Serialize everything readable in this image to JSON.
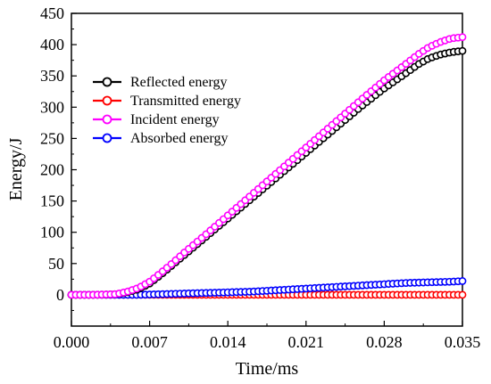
{
  "chart_data": {
    "type": "line",
    "xlabel": "Time/ms",
    "ylabel": "Energy/J",
    "xlim": [
      0,
      0.035
    ],
    "ylim": [
      -50,
      450
    ],
    "x_ticks": [
      "0.000",
      "0.007",
      "0.014",
      "0.021",
      "0.028",
      "0.035"
    ],
    "x_tick_values": [
      0,
      0.007,
      0.014,
      0.021,
      0.028,
      0.035
    ],
    "y_ticks": [
      "0",
      "50",
      "100",
      "150",
      "200",
      "250",
      "300",
      "350",
      "400",
      "450"
    ],
    "y_tick_values": [
      0,
      50,
      100,
      150,
      200,
      250,
      300,
      350,
      400,
      450
    ],
    "legend_position": "top-left",
    "grid": false,
    "marker": "hollow-circle",
    "series": [
      {
        "name": "Reflected energy",
        "color": "#000000",
        "points": [
          [
            0,
            0
          ],
          [
            0.002,
            0
          ],
          [
            0.004,
            1
          ],
          [
            0.005,
            4
          ],
          [
            0.006,
            9
          ],
          [
            0.007,
            18
          ],
          [
            0.008,
            32
          ],
          [
            0.009,
            47
          ],
          [
            0.01,
            62
          ],
          [
            0.012,
            92
          ],
          [
            0.014,
            122
          ],
          [
            0.016,
            152
          ],
          [
            0.018,
            182
          ],
          [
            0.02,
            212
          ],
          [
            0.022,
            242
          ],
          [
            0.024,
            272
          ],
          [
            0.026,
            302
          ],
          [
            0.028,
            330
          ],
          [
            0.03,
            355
          ],
          [
            0.031,
            368
          ],
          [
            0.032,
            378
          ],
          [
            0.033,
            384
          ],
          [
            0.034,
            388
          ],
          [
            0.035,
            390
          ]
        ]
      },
      {
        "name": "Transmitted energy",
        "color": "#ff0000",
        "points": [
          [
            0,
            0
          ],
          [
            0.01,
            0
          ],
          [
            0.02,
            0
          ],
          [
            0.03,
            0
          ],
          [
            0.035,
            0
          ]
        ]
      },
      {
        "name": "Incident energy",
        "color": "#ff00ff",
        "points": [
          [
            0,
            0
          ],
          [
            0.002,
            0
          ],
          [
            0.004,
            1
          ],
          [
            0.005,
            5
          ],
          [
            0.006,
            11
          ],
          [
            0.007,
            21
          ],
          [
            0.008,
            35
          ],
          [
            0.009,
            50
          ],
          [
            0.01,
            66
          ],
          [
            0.012,
            96
          ],
          [
            0.014,
            127
          ],
          [
            0.016,
            158
          ],
          [
            0.018,
            189
          ],
          [
            0.02,
            220
          ],
          [
            0.022,
            251
          ],
          [
            0.024,
            282
          ],
          [
            0.026,
            313
          ],
          [
            0.028,
            343
          ],
          [
            0.03,
            370
          ],
          [
            0.031,
            384
          ],
          [
            0.032,
            396
          ],
          [
            0.033,
            404
          ],
          [
            0.034,
            410
          ],
          [
            0.035,
            412
          ]
        ]
      },
      {
        "name": "Absorbed energy",
        "color": "#0000ff",
        "points": [
          [
            0,
            0
          ],
          [
            0.006,
            0
          ],
          [
            0.008,
            1
          ],
          [
            0.01,
            2
          ],
          [
            0.012,
            3
          ],
          [
            0.014,
            4
          ],
          [
            0.016,
            5
          ],
          [
            0.018,
            7
          ],
          [
            0.02,
            9
          ],
          [
            0.022,
            11
          ],
          [
            0.024,
            13
          ],
          [
            0.026,
            15
          ],
          [
            0.028,
            17
          ],
          [
            0.03,
            19
          ],
          [
            0.032,
            20
          ],
          [
            0.034,
            21
          ],
          [
            0.035,
            22
          ]
        ]
      }
    ]
  }
}
